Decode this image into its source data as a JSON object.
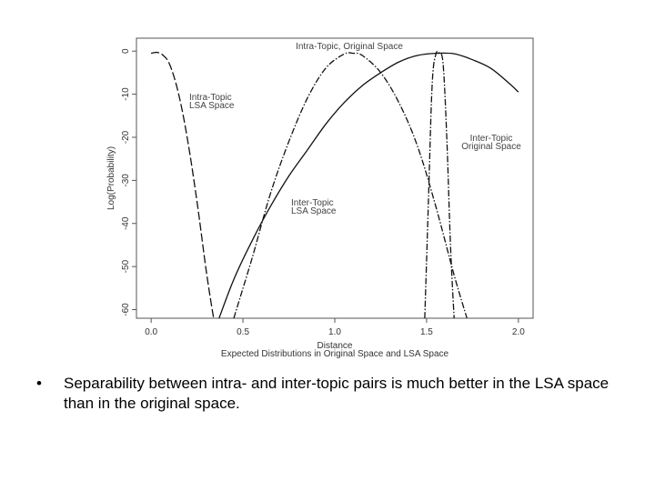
{
  "chart_data": {
    "type": "line",
    "xlabel": "Distance",
    "ylabel": "Log(Probability)",
    "caption": "Expected Distributions in Original Space and LSA Space",
    "xlim": [
      -0.08,
      2.08
    ],
    "ylim": [
      -62,
      3
    ],
    "x_ticks": [
      0.0,
      0.5,
      1.0,
      1.5,
      2.0
    ],
    "x_tick_labels": [
      "0.0",
      "0.5",
      "1.0",
      "1.5",
      "2.0"
    ],
    "y_ticks": [
      0,
      -10,
      -20,
      -30,
      -40,
      -50,
      -60
    ],
    "y_tick_labels": [
      "0",
      "-10",
      "-20",
      "-30",
      "-40",
      "-50",
      "-60"
    ],
    "grid": false,
    "series": [
      {
        "name": "Intra-Topic, Original Space",
        "label_lines": [
          "Intra-Topic, Original Space"
        ],
        "style": "dash-dot",
        "x": [
          0.45,
          0.55,
          0.65,
          0.75,
          0.85,
          0.95,
          1.05,
          1.1,
          1.15,
          1.25,
          1.35,
          1.45,
          1.55,
          1.65,
          1.72
        ],
        "y": [
          -62,
          -48,
          -33,
          -21,
          -11,
          -4,
          -0.7,
          -0.5,
          -1,
          -5,
          -12,
          -22,
          -36,
          -52,
          -62
        ]
      },
      {
        "name": "Intra-Topic LSA Space",
        "label_lines": [
          "Intra-Topic",
          "LSA Space"
        ],
        "style": "long-dash",
        "x": [
          0.0,
          0.03,
          0.06,
          0.1,
          0.15,
          0.2,
          0.25,
          0.3,
          0.34
        ],
        "y": [
          -0.5,
          -0.3,
          -0.8,
          -3,
          -10,
          -21,
          -35,
          -51,
          -62
        ]
      },
      {
        "name": "Inter-Topic Original Space",
        "label_lines": [
          "Inter-Topic",
          "Original Space"
        ],
        "style": "dash-dot",
        "x": [
          1.49,
          1.51,
          1.53,
          1.55,
          1.57,
          1.59,
          1.61,
          1.63,
          1.65
        ],
        "y": [
          -62,
          -35,
          -8,
          -0.8,
          -0.5,
          -3,
          -20,
          -45,
          -62
        ]
      },
      {
        "name": "Inter-Topic LSA Space",
        "label_lines": [
          "Inter-Topic",
          "LSA Space"
        ],
        "style": "solid",
        "x": [
          0.37,
          0.45,
          0.55,
          0.65,
          0.75,
          0.85,
          0.95,
          1.05,
          1.15,
          1.25,
          1.35,
          1.45,
          1.55,
          1.65,
          1.75,
          1.85,
          1.95,
          2.0
        ],
        "y": [
          -62,
          -53,
          -44,
          -36,
          -29,
          -23,
          -17,
          -12,
          -8,
          -5,
          -2.5,
          -1,
          -0.5,
          -0.6,
          -2,
          -4,
          -7.5,
          -9.5
        ]
      }
    ]
  },
  "bullet": {
    "symbol": "•",
    "text": "Separability  between intra- and inter-topic pairs is much better in the LSA space than in the original space."
  }
}
